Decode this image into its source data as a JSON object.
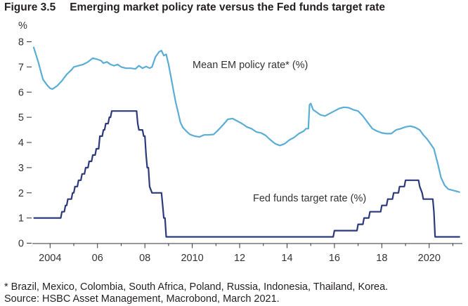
{
  "figure": {
    "number": "Figure 3.5",
    "title": "Emerging market policy rate versus the Fed funds target rate"
  },
  "chart_data": {
    "type": "line",
    "ylabel": "%",
    "ylim": [
      0,
      8
    ],
    "xlim": [
      2003.25,
      2021.4
    ],
    "yticks": [
      0,
      1,
      2,
      3,
      4,
      5,
      6,
      7,
      8
    ],
    "xticks": [
      {
        "value": 2004,
        "label": "2004"
      },
      {
        "value": 2006,
        "label": "06"
      },
      {
        "value": 2008,
        "label": "08"
      },
      {
        "value": 2010,
        "label": "2010"
      },
      {
        "value": 2012,
        "label": "12"
      },
      {
        "value": 2014,
        "label": "14"
      },
      {
        "value": 2016,
        "label": "16"
      },
      {
        "value": 2018,
        "label": "18"
      },
      {
        "value": 2020,
        "label": "2020"
      }
    ],
    "series": [
      {
        "name": "Mean EM policy rate* (%)",
        "color": "#5aadd6",
        "points": [
          [
            2003.3,
            7.8
          ],
          [
            2003.5,
            7.2
          ],
          [
            2003.7,
            6.5
          ],
          [
            2003.9,
            6.25
          ],
          [
            2004.0,
            6.15
          ],
          [
            2004.1,
            6.12
          ],
          [
            2004.3,
            6.25
          ],
          [
            2004.5,
            6.45
          ],
          [
            2004.7,
            6.7
          ],
          [
            2004.9,
            6.88
          ],
          [
            2005.0,
            7.0
          ],
          [
            2005.2,
            7.05
          ],
          [
            2005.4,
            7.1
          ],
          [
            2005.6,
            7.2
          ],
          [
            2005.8,
            7.35
          ],
          [
            2006.0,
            7.3
          ],
          [
            2006.15,
            7.25
          ],
          [
            2006.25,
            7.15
          ],
          [
            2006.4,
            7.2
          ],
          [
            2006.55,
            7.1
          ],
          [
            2006.7,
            7.05
          ],
          [
            2006.85,
            7.1
          ],
          [
            2007.0,
            7.0
          ],
          [
            2007.2,
            6.95
          ],
          [
            2007.4,
            6.95
          ],
          [
            2007.6,
            6.92
          ],
          [
            2007.75,
            7.05
          ],
          [
            2007.9,
            6.95
          ],
          [
            2008.05,
            7.02
          ],
          [
            2008.2,
            6.95
          ],
          [
            2008.3,
            7.0
          ],
          [
            2008.45,
            7.4
          ],
          [
            2008.6,
            7.6
          ],
          [
            2008.7,
            7.65
          ],
          [
            2008.8,
            7.45
          ],
          [
            2008.9,
            7.5
          ],
          [
            2009.0,
            7.1
          ],
          [
            2009.1,
            6.6
          ],
          [
            2009.2,
            6.1
          ],
          [
            2009.3,
            5.6
          ],
          [
            2009.4,
            5.2
          ],
          [
            2009.5,
            4.8
          ],
          [
            2009.6,
            4.6
          ],
          [
            2009.75,
            4.45
          ],
          [
            2009.9,
            4.32
          ],
          [
            2010.1,
            4.25
          ],
          [
            2010.3,
            4.22
          ],
          [
            2010.5,
            4.3
          ],
          [
            2010.7,
            4.3
          ],
          [
            2010.9,
            4.32
          ],
          [
            2011.1,
            4.5
          ],
          [
            2011.3,
            4.7
          ],
          [
            2011.5,
            4.92
          ],
          [
            2011.7,
            4.95
          ],
          [
            2011.9,
            4.85
          ],
          [
            2012.1,
            4.75
          ],
          [
            2012.3,
            4.62
          ],
          [
            2012.5,
            4.55
          ],
          [
            2012.7,
            4.42
          ],
          [
            2012.9,
            4.38
          ],
          [
            2013.1,
            4.28
          ],
          [
            2013.3,
            4.1
          ],
          [
            2013.5,
            3.95
          ],
          [
            2013.7,
            3.88
          ],
          [
            2013.9,
            3.95
          ],
          [
            2014.1,
            4.1
          ],
          [
            2014.3,
            4.2
          ],
          [
            2014.5,
            4.35
          ],
          [
            2014.7,
            4.45
          ],
          [
            2014.8,
            4.55
          ],
          [
            2014.9,
            4.55
          ],
          [
            2014.95,
            5.5
          ],
          [
            2015.0,
            5.55
          ],
          [
            2015.1,
            5.3
          ],
          [
            2015.25,
            5.2
          ],
          [
            2015.4,
            5.1
          ],
          [
            2015.6,
            5.05
          ],
          [
            2015.8,
            5.15
          ],
          [
            2016.0,
            5.25
          ],
          [
            2016.2,
            5.35
          ],
          [
            2016.4,
            5.4
          ],
          [
            2016.6,
            5.38
          ],
          [
            2016.8,
            5.3
          ],
          [
            2017.0,
            5.25
          ],
          [
            2017.2,
            5.05
          ],
          [
            2017.4,
            4.8
          ],
          [
            2017.6,
            4.55
          ],
          [
            2017.8,
            4.45
          ],
          [
            2018.0,
            4.38
          ],
          [
            2018.2,
            4.35
          ],
          [
            2018.4,
            4.35
          ],
          [
            2018.6,
            4.5
          ],
          [
            2018.8,
            4.55
          ],
          [
            2019.0,
            4.62
          ],
          [
            2019.2,
            4.65
          ],
          [
            2019.4,
            4.6
          ],
          [
            2019.6,
            4.5
          ],
          [
            2019.75,
            4.3
          ],
          [
            2019.9,
            4.15
          ],
          [
            2020.05,
            3.95
          ],
          [
            2020.2,
            3.75
          ],
          [
            2020.35,
            3.2
          ],
          [
            2020.5,
            2.6
          ],
          [
            2020.65,
            2.3
          ],
          [
            2020.8,
            2.15
          ],
          [
            2021.0,
            2.1
          ],
          [
            2021.2,
            2.05
          ],
          [
            2021.3,
            2.02
          ]
        ]
      },
      {
        "name": "Fed funds target rate (%)",
        "color": "#2b3a7c",
        "points": [
          [
            2003.3,
            1.0
          ],
          [
            2004.45,
            1.0
          ],
          [
            2004.5,
            1.25
          ],
          [
            2004.6,
            1.25
          ],
          [
            2004.65,
            1.5
          ],
          [
            2004.7,
            1.5
          ],
          [
            2004.75,
            1.75
          ],
          [
            2004.9,
            1.75
          ],
          [
            2004.95,
            2.0
          ],
          [
            2005.0,
            2.0
          ],
          [
            2005.05,
            2.25
          ],
          [
            2005.15,
            2.25
          ],
          [
            2005.2,
            2.5
          ],
          [
            2005.3,
            2.5
          ],
          [
            2005.35,
            2.75
          ],
          [
            2005.45,
            2.75
          ],
          [
            2005.5,
            3.0
          ],
          [
            2005.6,
            3.0
          ],
          [
            2005.65,
            3.25
          ],
          [
            2005.75,
            3.25
          ],
          [
            2005.8,
            3.5
          ],
          [
            2005.9,
            3.5
          ],
          [
            2005.95,
            3.75
          ],
          [
            2006.05,
            3.75
          ],
          [
            2006.1,
            4.25
          ],
          [
            2006.2,
            4.25
          ],
          [
            2006.25,
            4.5
          ],
          [
            2006.3,
            4.5
          ],
          [
            2006.35,
            4.75
          ],
          [
            2006.45,
            4.75
          ],
          [
            2006.5,
            5.0
          ],
          [
            2006.55,
            5.0
          ],
          [
            2006.6,
            5.25
          ],
          [
            2007.65,
            5.25
          ],
          [
            2007.7,
            4.75
          ],
          [
            2007.75,
            4.5
          ],
          [
            2007.9,
            4.5
          ],
          [
            2007.95,
            4.25
          ],
          [
            2008.0,
            4.25
          ],
          [
            2008.05,
            3.5
          ],
          [
            2008.1,
            3.0
          ],
          [
            2008.15,
            3.0
          ],
          [
            2008.2,
            2.25
          ],
          [
            2008.3,
            2.0
          ],
          [
            2008.7,
            2.0
          ],
          [
            2008.75,
            1.5
          ],
          [
            2008.8,
            1.0
          ],
          [
            2008.85,
            1.0
          ],
          [
            2008.9,
            0.25
          ],
          [
            2015.95,
            0.25
          ],
          [
            2016.0,
            0.5
          ],
          [
            2016.95,
            0.5
          ],
          [
            2017.0,
            0.75
          ],
          [
            2017.2,
            0.75
          ],
          [
            2017.25,
            1.0
          ],
          [
            2017.45,
            1.0
          ],
          [
            2017.5,
            1.25
          ],
          [
            2017.95,
            1.25
          ],
          [
            2018.0,
            1.5
          ],
          [
            2018.2,
            1.5
          ],
          [
            2018.25,
            1.75
          ],
          [
            2018.45,
            1.75
          ],
          [
            2018.5,
            2.0
          ],
          [
            2018.7,
            2.0
          ],
          [
            2018.75,
            2.25
          ],
          [
            2018.95,
            2.25
          ],
          [
            2019.0,
            2.5
          ],
          [
            2019.55,
            2.5
          ],
          [
            2019.6,
            2.25
          ],
          [
            2019.7,
            2.0
          ],
          [
            2019.75,
            1.75
          ],
          [
            2020.15,
            1.75
          ],
          [
            2020.2,
            1.25
          ],
          [
            2020.25,
            0.25
          ],
          [
            2021.3,
            0.25
          ]
        ]
      }
    ],
    "annotations": [
      {
        "text": "Mean EM policy rate* (%)"
      },
      {
        "text": "Fed funds target rate (%)"
      }
    ]
  },
  "notes": {
    "footnote": "* Brazil, Mexico, Colombia, South Africa, Poland, Russia, Indonesia, Thailand, Korea.",
    "source": "Source: HSBC Asset Management, Macrobond, March 2021."
  }
}
